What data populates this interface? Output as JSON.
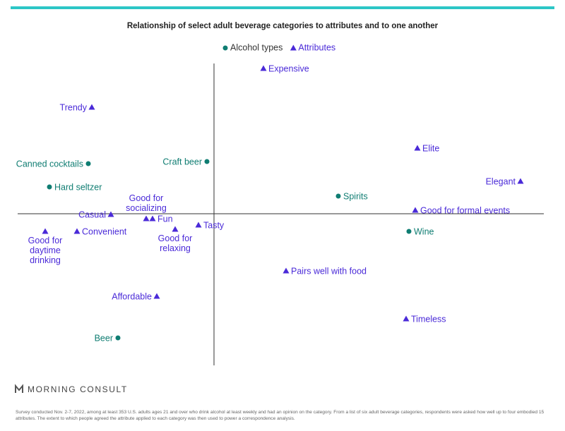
{
  "chart_data": {
    "type": "scatter",
    "title": "Relationship of select adult beverage categories to attributes and to one another",
    "xlim": [
      -2.78,
      4.67
    ],
    "ylim": [
      -2.15,
      2.13
    ],
    "series": [
      {
        "name": "Alcohol types",
        "color": "#0f7d72",
        "marker": "circle",
        "labels": [
          "Canned cocktails",
          "Hard seltzer",
          "Craft beer",
          "Spirits",
          "Wine",
          "Beer"
        ],
        "x": [
          -1.78,
          -2.33,
          -0.1,
          1.76,
          2.76,
          -1.36
        ],
        "values": [
          0.71,
          0.38,
          0.74,
          0.25,
          -0.25,
          -1.76
        ]
      },
      {
        "name": "Attributes",
        "color": "#4a2ad8",
        "marker": "triangle",
        "labels": [
          "Expensive",
          "Trendy",
          "Elite",
          "Elegant",
          "Good for formal events",
          "Casual",
          "Good for socializing",
          "Fun",
          "Tasty",
          "Good for daytime drinking",
          "Convenient",
          "Good for relaxing",
          "Pairs well with food",
          "Affordable",
          "Timeless"
        ],
        "x": [
          0.7,
          -1.73,
          2.88,
          4.34,
          2.85,
          -1.46,
          -0.96,
          -0.87,
          -0.22,
          -2.39,
          -1.94,
          -0.55,
          1.02,
          -0.81,
          2.72
        ],
        "values": [
          2.06,
          1.51,
          0.93,
          0.46,
          0.05,
          -0.01,
          -0.07,
          -0.07,
          -0.16,
          -0.25,
          -0.25,
          -0.22,
          -0.81,
          -1.17,
          -1.49
        ]
      }
    ]
  },
  "brand": "MORNING CONSULT",
  "footnote": "Survey conducted Nov. 2-7, 2022, among at least 353 U.S. adults ages 21 and over who drink alcohol at least weekly and had an opinion on the category. From a list of six adult beverage categories, respondents were asked how well up to four embodied 15 attributes. The extent to which people agreed the attribute applied to each category was then used to power a correspondence analysis."
}
